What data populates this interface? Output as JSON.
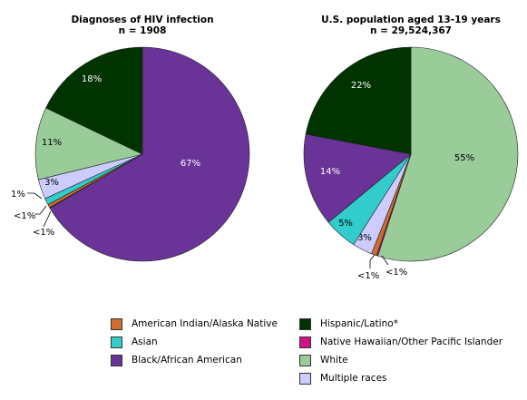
{
  "chart_data": [
    {
      "type": "pie",
      "title": "Diagnoses of HIV infection",
      "subtitle": "n = 1908",
      "slices": [
        {
          "name": "Black/African American",
          "value": 67,
          "label": "67%",
          "color": "#6a3397"
        },
        {
          "name": "Native Hawaiian/Other Pacific Islander",
          "value": 0.1,
          "label": "",
          "color": "#cc1388"
        },
        {
          "name": "American Indian/Alaska Native",
          "value": 0.5,
          "label": "<1%",
          "color": "#cf6c30"
        },
        {
          "name": "Asian",
          "value": 1,
          "label": "1%",
          "color": "#33cccc"
        },
        {
          "name": "Multiple races",
          "value": 3,
          "label": "3%",
          "color": "#ccccff"
        },
        {
          "name": "White",
          "value": 11,
          "label": "11%",
          "color": "#99cc99"
        },
        {
          "name": "Hispanic/Latino*",
          "value": 18,
          "label": "18%",
          "color": "#003300"
        }
      ],
      "outside_labels": [
        "1%",
        "<1%",
        "<1%"
      ]
    },
    {
      "type": "pie",
      "title": "U.S. population aged 13-19 years",
      "subtitle": "n = 29,524,367",
      "slices": [
        {
          "name": "White",
          "value": 55,
          "label": "55%",
          "color": "#99cc99"
        },
        {
          "name": "Native Hawaiian/Other Pacific Islander",
          "value": 0.2,
          "label": "<1%",
          "color": "#cc1388"
        },
        {
          "name": "American Indian/Alaska Native",
          "value": 0.8,
          "label": "<1%",
          "color": "#cf6c30"
        },
        {
          "name": "Multiple races",
          "value": 3,
          "label": "3%",
          "color": "#ccccff"
        },
        {
          "name": "Asian",
          "value": 5,
          "label": "5%",
          "color": "#33cccc"
        },
        {
          "name": "Black/African American",
          "value": 14,
          "label": "14%",
          "color": "#6a3397"
        },
        {
          "name": "Hispanic/Latino*",
          "value": 22,
          "label": "22%",
          "color": "#003300"
        }
      ],
      "outside_labels": [
        "<1%",
        "<1%"
      ]
    }
  ],
  "legend": [
    {
      "label": "American Indian/Alaska Native",
      "color": "#cf6c30"
    },
    {
      "label": "Asian",
      "color": "#33cccc"
    },
    {
      "label": "Black/African American",
      "color": "#6a3397"
    },
    {
      "label": "Hispanic/Latino*",
      "color": "#003300"
    },
    {
      "label": "Native Hawaiian/Other Pacific Islander",
      "color": "#cc1388"
    },
    {
      "label": "White",
      "color": "#99cc99"
    },
    {
      "label": "Multiple races",
      "color": "#ccccff"
    }
  ]
}
